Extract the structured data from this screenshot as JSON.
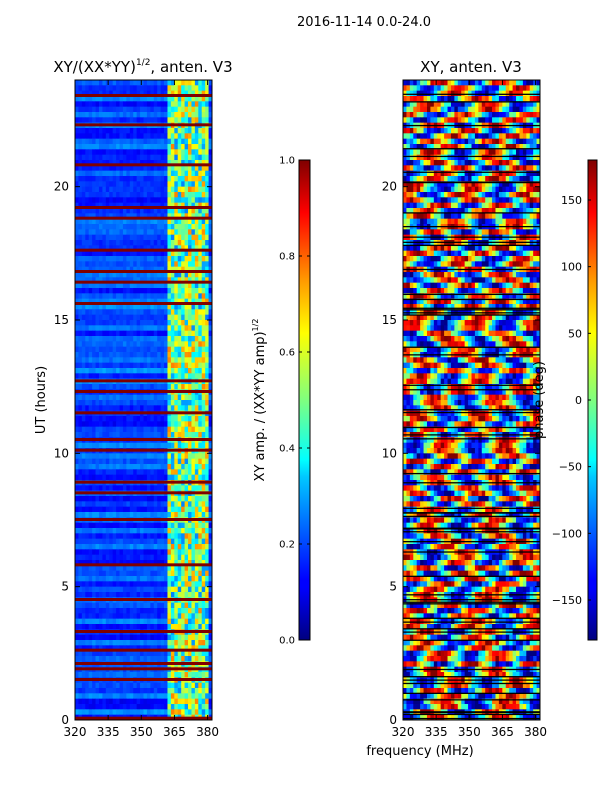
{
  "figure_title": "2016-11-14 0.0-24.0",
  "shared_xlabel": "frequency (MHz)",
  "chart_data": [
    {
      "type": "heatmap",
      "title": "XY/(XX*YY)^1/2, anten. V3",
      "title_main": "XY/(XX*YY)",
      "title_sup": "1/2",
      "title_tail": ", anten. V3",
      "xlabel": "frequency (MHz)",
      "ylabel": "UT (hours)",
      "x_ticks": [
        320,
        335,
        350,
        365,
        380
      ],
      "y_ticks": [
        0,
        5,
        10,
        15,
        20
      ],
      "xlim": [
        320,
        382
      ],
      "ylim": [
        0,
        24
      ],
      "colorbar": {
        "label": "XY amp. / (XX*YY amp)^1/2",
        "label_main": "XY amp. / (XX*YY amp)",
        "label_sup": "1/2",
        "range": [
          0.0,
          1.0
        ],
        "ticks": [
          "0.0",
          "0.2",
          "0.4",
          "0.6",
          "0.8",
          "1.0"
        ],
        "colormap": "jet"
      },
      "flagged_rows_hours": [
        0.05,
        1.5,
        1.9,
        2.1,
        2.6,
        3.3,
        4.5,
        5.8,
        7.5,
        8.5,
        8.9,
        10.1,
        10.5,
        11.5,
        12.3,
        12.7,
        15.6,
        16.4,
        16.8,
        17.6,
        18.8,
        19.2,
        20.8,
        22.3,
        23.4
      ]
    },
    {
      "type": "heatmap",
      "title": "XY, anten. V3",
      "xlabel": "frequency (MHz)",
      "ylabel": "",
      "x_ticks": [
        320,
        335,
        350,
        365,
        380
      ],
      "y_ticks": [
        0,
        5,
        10,
        15,
        20
      ],
      "xlim": [
        320,
        382
      ],
      "ylim": [
        0,
        24
      ],
      "colorbar": {
        "label": "phase (deg)",
        "range": [
          -180,
          180
        ],
        "ticks": [
          "−150",
          "−100",
          "−50",
          "0",
          "50",
          "100",
          "150"
        ],
        "tick_values": [
          -150,
          -100,
          -50,
          0,
          50,
          100,
          150
        ],
        "colormap": "jet"
      }
    }
  ],
  "colors": {
    "jet_low": "#00007f",
    "jet_high": "#7f0000",
    "flag_red": "#800000"
  }
}
